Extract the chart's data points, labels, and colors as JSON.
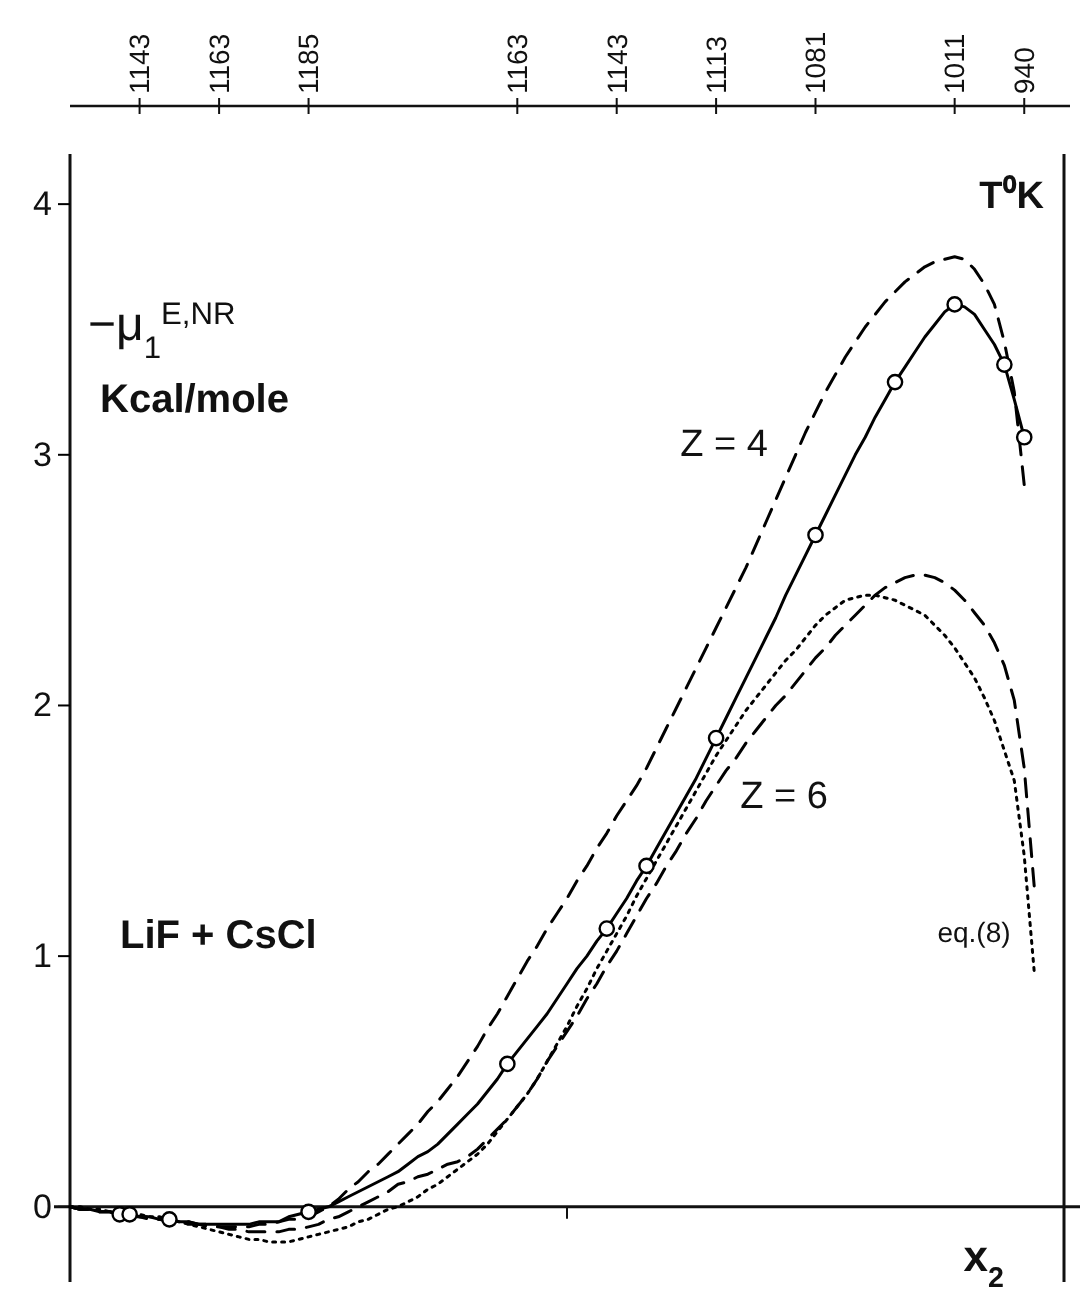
{
  "chart_data": {
    "type": "line",
    "xlabel": "x$_{2}$",
    "x2label": "T⁰K",
    "ylabel": "−μ$_{1}$$^{E,NR}$ Kcal/mole",
    "categories": [
      null,
      null,
      null,
      null,
      null,
      null,
      null,
      "1143",
      null,
      null,
      null,
      null,
      null,
      null,
      null,
      "1163",
      null,
      null,
      null,
      null,
      null,
      null,
      null,
      null,
      "1185",
      null,
      null,
      null,
      null,
      null,
      null,
      null,
      null,
      null,
      null,
      null,
      null,
      null,
      null,
      null,
      null,
      null,
      null,
      null,
      null,
      "1163",
      null,
      null,
      null,
      null,
      null,
      null,
      null,
      null,
      null,
      "1143",
      null,
      null,
      null,
      null,
      null,
      null,
      null,
      null,
      null,
      "1113",
      null,
      null,
      null,
      null,
      null,
      null,
      null,
      null,
      null,
      "1081",
      null,
      null,
      null,
      null,
      null,
      null,
      null,
      null,
      null,
      null,
      null,
      null,
      null,
      "1011",
      null,
      null,
      null,
      null,
      null,
      null,
      "940",
      null
    ],
    "ylim": [
      -0.3,
      4.2
    ],
    "yticks": [
      0,
      1,
      2,
      3,
      4
    ],
    "series": [
      {
        "color": "#000000",
        "line_style": "solid",
        "values": [
          0,
          -0.01,
          -0.01,
          -0.02,
          -0.02,
          -0.03,
          -0.03,
          -0.04,
          -0.04,
          -0.05,
          -0.05,
          -0.06,
          -0.06,
          -0.07,
          -0.07,
          -0.07,
          -0.07,
          -0.07,
          -0.07,
          -0.06,
          -0.06,
          -0.06,
          -0.04,
          -0.03,
          -0.02,
          -0.01,
          0,
          0.02,
          0.04,
          0.06,
          0.08,
          0.1,
          0.12,
          0.14,
          0.17,
          0.2,
          0.22,
          0.25,
          0.29,
          0.33,
          0.37,
          0.41,
          0.46,
          0.51,
          0.57,
          0.62,
          0.67,
          0.72,
          0.77,
          0.83,
          0.89,
          0.95,
          1.0,
          1.06,
          1.11,
          1.17,
          1.23,
          1.3,
          1.36,
          1.43,
          1.5,
          1.57,
          1.64,
          1.71,
          1.79,
          1.87,
          1.95,
          2.03,
          2.11,
          2.19,
          2.27,
          2.35,
          2.44,
          2.52,
          2.6,
          2.68,
          2.76,
          2.84,
          2.92,
          3.0,
          3.07,
          3.15,
          3.22,
          3.29,
          3.35,
          3.41,
          3.47,
          3.52,
          3.57,
          3.6,
          3.59,
          3.56,
          3.5,
          3.44,
          3.36,
          3.22,
          3.07,
          null
        ]
      },
      {
        "type": "scatter",
        "color": "#000000",
        "marker": "circle",
        "values": [
          null,
          null,
          null,
          null,
          null,
          -0.03,
          -0.03,
          null,
          null,
          null,
          -0.05,
          null,
          null,
          null,
          null,
          null,
          null,
          null,
          null,
          null,
          null,
          null,
          null,
          null,
          -0.02,
          null,
          null,
          null,
          null,
          null,
          null,
          null,
          null,
          null,
          null,
          null,
          null,
          null,
          null,
          null,
          null,
          null,
          null,
          null,
          0.57,
          null,
          null,
          null,
          null,
          null,
          null,
          null,
          null,
          null,
          1.11,
          null,
          null,
          null,
          1.36,
          null,
          null,
          null,
          null,
          null,
          null,
          1.87,
          null,
          null,
          null,
          null,
          null,
          null,
          null,
          null,
          null,
          2.68,
          null,
          null,
          null,
          null,
          null,
          null,
          null,
          3.29,
          null,
          null,
          null,
          null,
          null,
          3.6,
          null,
          null,
          null,
          null,
          3.36,
          null,
          3.07,
          null
        ]
      },
      {
        "name": "Z = 4",
        "color": "#000000",
        "line_style": "dashed",
        "values": [
          0,
          -0.01,
          -0.01,
          -0.02,
          -0.02,
          -0.03,
          -0.03,
          -0.04,
          -0.04,
          -0.05,
          -0.05,
          -0.06,
          -0.06,
          -0.07,
          -0.07,
          -0.08,
          -0.08,
          -0.08,
          -0.08,
          -0.07,
          -0.07,
          -0.06,
          -0.05,
          -0.05,
          -0.04,
          -0.02,
          0,
          0.03,
          0.07,
          0.1,
          0.14,
          0.17,
          0.21,
          0.25,
          0.29,
          0.33,
          0.38,
          0.42,
          0.47,
          0.52,
          0.58,
          0.64,
          0.71,
          0.77,
          0.84,
          0.91,
          0.98,
          1.04,
          1.11,
          1.17,
          1.23,
          1.3,
          1.36,
          1.43,
          1.49,
          1.56,
          1.62,
          1.68,
          1.75,
          1.83,
          1.91,
          1.99,
          2.07,
          2.15,
          2.23,
          2.31,
          2.39,
          2.47,
          2.55,
          2.64,
          2.73,
          2.82,
          2.91,
          3.0,
          3.09,
          3.17,
          3.25,
          3.32,
          3.39,
          3.45,
          3.51,
          3.56,
          3.61,
          3.65,
          3.69,
          3.72,
          3.75,
          3.77,
          3.78,
          3.79,
          3.78,
          3.74,
          3.68,
          3.6,
          3.45,
          3.25,
          2.88,
          null
        ]
      },
      {
        "name": "Z = 6",
        "color": "#000000",
        "line_style": "dashed",
        "values": [
          0,
          -0.01,
          -0.01,
          -0.02,
          -0.02,
          -0.03,
          -0.04,
          -0.04,
          -0.05,
          -0.05,
          -0.06,
          -0.06,
          -0.07,
          -0.07,
          -0.08,
          -0.08,
          -0.09,
          -0.09,
          -0.1,
          -0.1,
          -0.1,
          -0.1,
          -0.09,
          -0.09,
          -0.08,
          -0.07,
          -0.05,
          -0.04,
          -0.02,
          0,
          0.02,
          0.04,
          0.06,
          0.09,
          0.1,
          0.12,
          0.13,
          0.15,
          0.17,
          0.18,
          0.2,
          0.23,
          0.27,
          0.31,
          0.35,
          0.4,
          0.45,
          0.51,
          0.58,
          0.64,
          0.7,
          0.76,
          0.83,
          0.89,
          0.96,
          1.02,
          1.09,
          1.16,
          1.23,
          1.29,
          1.36,
          1.42,
          1.49,
          1.55,
          1.62,
          1.68,
          1.74,
          1.79,
          1.85,
          1.9,
          1.95,
          2.0,
          2.04,
          2.09,
          2.14,
          2.19,
          2.23,
          2.28,
          2.32,
          2.36,
          2.4,
          2.44,
          2.47,
          2.49,
          2.51,
          2.52,
          2.52,
          2.51,
          2.49,
          2.46,
          2.42,
          2.37,
          2.32,
          2.25,
          2.16,
          2.02,
          1.75,
          1.28
        ]
      },
      {
        "name": "eq.(8)",
        "color": "#000000",
        "line_style": "dotted",
        "values": [
          0,
          0,
          -0.01,
          -0.01,
          -0.02,
          -0.02,
          -0.03,
          -0.03,
          -0.04,
          -0.04,
          -0.05,
          -0.06,
          -0.07,
          -0.08,
          -0.09,
          -0.1,
          -0.11,
          -0.12,
          -0.13,
          -0.13,
          -0.14,
          -0.14,
          -0.14,
          -0.13,
          -0.12,
          -0.11,
          -0.1,
          -0.09,
          -0.08,
          -0.06,
          -0.05,
          -0.03,
          -0.01,
          0,
          0.02,
          0.04,
          0.07,
          0.09,
          0.12,
          0.15,
          0.18,
          0.21,
          0.25,
          0.3,
          0.35,
          0.4,
          0.45,
          0.51,
          0.58,
          0.65,
          0.72,
          0.8,
          0.87,
          0.95,
          1.02,
          1.09,
          1.16,
          1.24,
          1.31,
          1.38,
          1.45,
          1.52,
          1.59,
          1.66,
          1.73,
          1.8,
          1.86,
          1.92,
          1.98,
          2.03,
          2.08,
          2.13,
          2.18,
          2.22,
          2.27,
          2.32,
          2.36,
          2.39,
          2.42,
          2.43,
          2.44,
          2.44,
          2.43,
          2.42,
          2.4,
          2.38,
          2.36,
          2.32,
          2.28,
          2.23,
          2.17,
          2.11,
          2.03,
          1.94,
          1.82,
          1.7,
          1.4,
          0.94
        ]
      }
    ],
    "annotations": [
      "LiF + CsCl"
    ]
  }
}
